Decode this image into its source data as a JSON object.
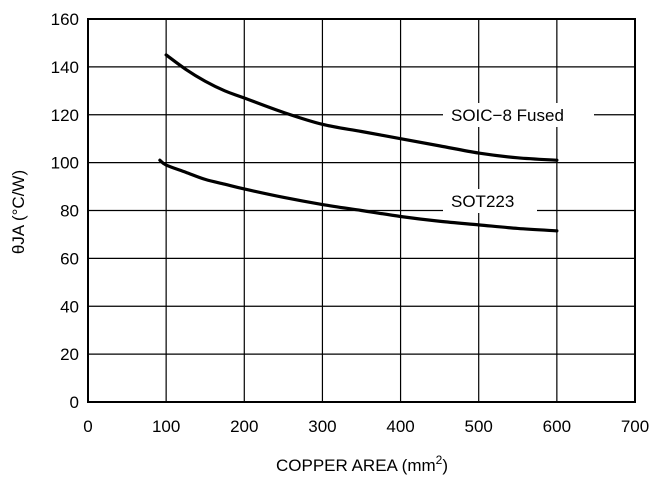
{
  "chart_data": {
    "type": "line",
    "title": "",
    "xlabel": "COPPER AREA (mm",
    "xlabel_sup": "2",
    "xlabel_close": ")",
    "ylabel": "θJA (°C/W)",
    "xlim": [
      0,
      700
    ],
    "ylim": [
      0,
      160
    ],
    "xticks": [
      0,
      100,
      200,
      300,
      400,
      500,
      600,
      700
    ],
    "yticks": [
      0,
      20,
      40,
      60,
      80,
      100,
      120,
      140,
      160
    ],
    "grid": true,
    "series": [
      {
        "name": "SOIC−8 Fused",
        "x": [
          100,
          125,
          150,
          175,
          200,
          250,
          300,
          350,
          400,
          450,
          500,
          550,
          600
        ],
        "y": [
          145,
          139,
          134,
          130,
          127,
          121,
          116,
          113,
          110,
          107,
          104,
          102,
          101
        ]
      },
      {
        "name": "SOT223",
        "x": [
          92,
          100,
          125,
          150,
          175,
          200,
          250,
          300,
          350,
          400,
          450,
          500,
          550,
          600
        ],
        "y": [
          101,
          99,
          96,
          93,
          91,
          89,
          85.5,
          82.5,
          80,
          77.5,
          75.5,
          74,
          72.5,
          71.5
        ]
      }
    ]
  }
}
